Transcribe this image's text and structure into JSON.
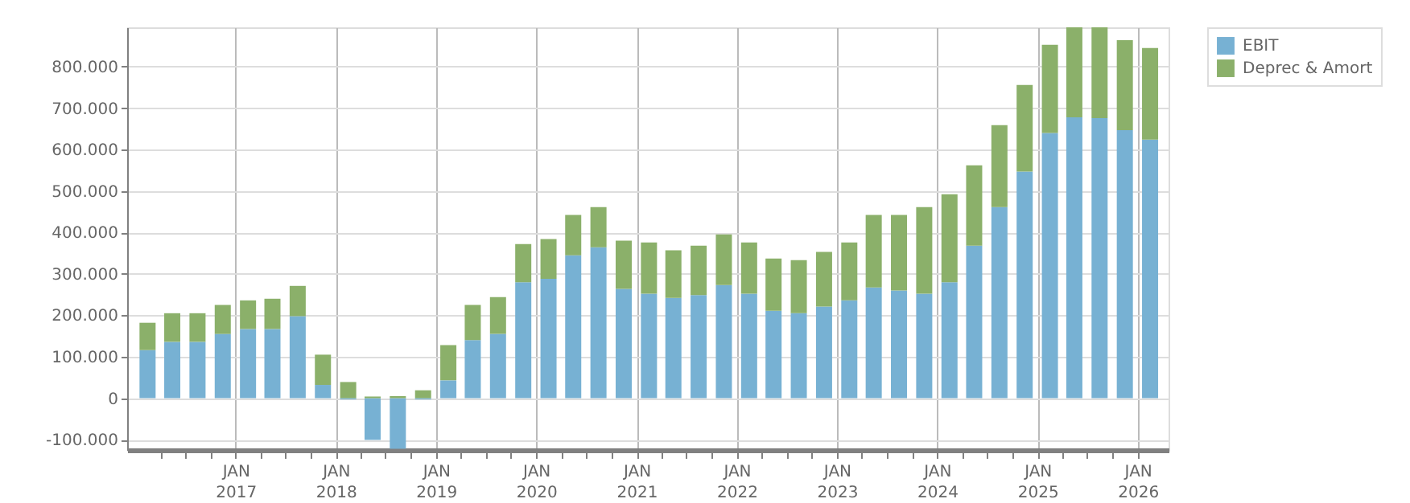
{
  "chart_data": {
    "type": "bar",
    "stacked": true,
    "x": [
      "2016-02-15",
      "2016-05-15",
      "2016-08-15",
      "2016-11-15",
      "2017-02-15",
      "2017-05-15",
      "2017-08-15",
      "2017-11-15",
      "2018-02-15",
      "2018-05-15",
      "2018-08-15",
      "2018-11-15",
      "2019-02-15",
      "2019-05-15",
      "2019-08-15",
      "2019-11-15",
      "2020-02-15",
      "2020-05-15",
      "2020-08-15",
      "2020-11-15",
      "2021-02-15",
      "2021-05-15",
      "2021-08-15",
      "2021-11-15",
      "2022-02-15",
      "2022-05-15",
      "2022-08-15",
      "2022-11-15",
      "2023-02-15",
      "2023-05-15",
      "2023-08-15",
      "2023-11-15",
      "2024-02-15",
      "2024-05-15",
      "2024-08-15",
      "2024-11-15",
      "2025-02-15",
      "2025-05-15",
      "2025-08-15",
      "2025-11-15",
      "2026-02-15"
    ],
    "series": [
      {
        "name": "EBIT",
        "color": "#77b1d3",
        "values": [
          116000,
          136000,
          136000,
          155000,
          167000,
          167000,
          198000,
          32000,
          -3000,
          -101000,
          -122000,
          -3000,
          43000,
          140000,
          155000,
          280000,
          288000,
          345000,
          364000,
          264000,
          252000,
          242000,
          249000,
          273000,
          252000,
          211000,
          205000,
          221000,
          236000,
          267000,
          260000,
          252000,
          280000,
          368000,
          461000,
          547000,
          640000,
          678000,
          676000,
          647000,
          624000
        ]
      },
      {
        "name": "Deprec & Amort",
        "color": "#8bb06a",
        "values": [
          66000,
          69000,
          69000,
          70000,
          69000,
          73000,
          73000,
          73000,
          39000,
          4000,
          5000,
          19000,
          85000,
          85000,
          89000,
          92000,
          96000,
          97000,
          97000,
          116000,
          124000,
          115000,
          119000,
          122000,
          124000,
          126000,
          128000,
          132000,
          140000,
          175000,
          182000,
          209000,
          212000,
          194000,
          198000,
          209000,
          213000,
          217000,
          219000,
          217000,
          221000
        ]
      }
    ],
    "xlim": [
      "2016-01-01",
      "2026-03-25"
    ],
    "xticks": [
      {
        "value": "2016-04-01",
        "label": null
      },
      {
        "value": "2016-07-01",
        "label": null
      },
      {
        "value": "2016-10-01",
        "label": null
      },
      {
        "value": "2017-01-01",
        "label": "JAN\n2017"
      },
      {
        "value": "2017-04-01",
        "label": null
      },
      {
        "value": "2017-07-01",
        "label": null
      },
      {
        "value": "2017-10-01",
        "label": null
      },
      {
        "value": "2018-01-01",
        "label": "JAN\n2018"
      },
      {
        "value": "2018-04-01",
        "label": null
      },
      {
        "value": "2018-07-01",
        "label": null
      },
      {
        "value": "2018-10-01",
        "label": null
      },
      {
        "value": "2019-01-01",
        "label": "JAN\n2019"
      },
      {
        "value": "2019-04-01",
        "label": null
      },
      {
        "value": "2019-07-01",
        "label": null
      },
      {
        "value": "2019-10-01",
        "label": null
      },
      {
        "value": "2020-01-01",
        "label": "JAN\n2020"
      },
      {
        "value": "2020-04-01",
        "label": null
      },
      {
        "value": "2020-07-01",
        "label": null
      },
      {
        "value": "2020-10-01",
        "label": null
      },
      {
        "value": "2021-01-01",
        "label": "JAN\n2021"
      },
      {
        "value": "2021-04-01",
        "label": null
      },
      {
        "value": "2021-07-01",
        "label": null
      },
      {
        "value": "2021-10-01",
        "label": null
      },
      {
        "value": "2022-01-01",
        "label": "JAN\n2022"
      },
      {
        "value": "2022-04-01",
        "label": null
      },
      {
        "value": "2022-07-01",
        "label": null
      },
      {
        "value": "2022-10-01",
        "label": null
      },
      {
        "value": "2023-01-01",
        "label": "JAN\n2023"
      },
      {
        "value": "2023-04-01",
        "label": null
      },
      {
        "value": "2023-07-01",
        "label": null
      },
      {
        "value": "2023-10-01",
        "label": null
      },
      {
        "value": "2024-01-01",
        "label": "JAN\n2024"
      },
      {
        "value": "2024-04-01",
        "label": null
      },
      {
        "value": "2024-07-01",
        "label": null
      },
      {
        "value": "2024-10-01",
        "label": null
      },
      {
        "value": "2025-01-01",
        "label": "JAN\n2025"
      },
      {
        "value": "2025-04-01",
        "label": null
      },
      {
        "value": "2025-07-01",
        "label": null
      },
      {
        "value": "2025-10-01",
        "label": null
      },
      {
        "value": "2026-01-01",
        "label": "JAN\n2026"
      }
    ],
    "ylim": [
      -125000,
      895000
    ],
    "yticks": [
      {
        "value": -100000,
        "label": "-100.000"
      },
      0,
      {
        "value": 100000,
        "label": "100.000"
      },
      {
        "value": 200000,
        "label": "200.000"
      },
      {
        "value": 300000,
        "label": "300.000"
      },
      {
        "value": 400000,
        "label": "400.000"
      },
      {
        "value": 500000,
        "label": "500.000"
      },
      {
        "value": 600000,
        "label": "600.000"
      },
      {
        "value": 700000,
        "label": "700.000"
      },
      {
        "value": 800000,
        "label": "800.000"
      }
    ],
    "grid": true,
    "legend": "right"
  }
}
